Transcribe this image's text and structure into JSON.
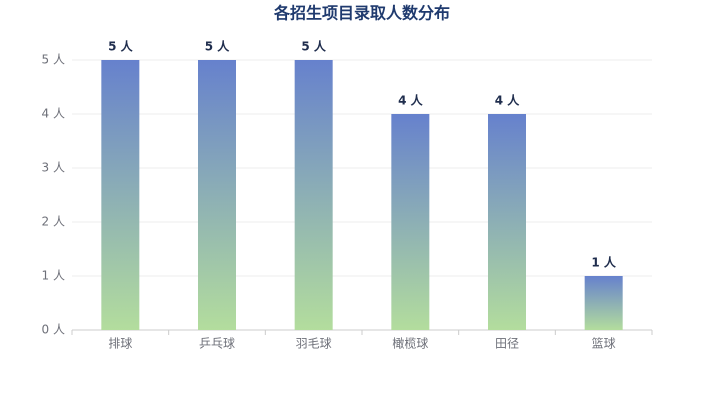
{
  "chart_data": {
    "type": "bar",
    "title": "各招生项目录取人数分布",
    "categories": [
      "排球",
      "乒乓球",
      "羽毛球",
      "橄榄球",
      "田径",
      "篮球"
    ],
    "values": [
      5,
      5,
      5,
      4,
      4,
      1
    ],
    "value_labels": [
      "5 人",
      "5 人",
      "5 人",
      "4 人",
      "4 人",
      "1 人"
    ],
    "gradient": {
      "top": "#6681cd",
      "bottom": "#b3dd9d"
    },
    "ylim": [
      0,
      5
    ],
    "yticks": [
      {
        "value": 0,
        "label": "0 人"
      },
      {
        "value": 1,
        "label": "1 人"
      },
      {
        "value": 2,
        "label": "2 人"
      },
      {
        "value": 3,
        "label": "3 人"
      },
      {
        "value": 4,
        "label": "4 人"
      },
      {
        "value": 5,
        "label": "5 人"
      }
    ],
    "grid": true
  }
}
